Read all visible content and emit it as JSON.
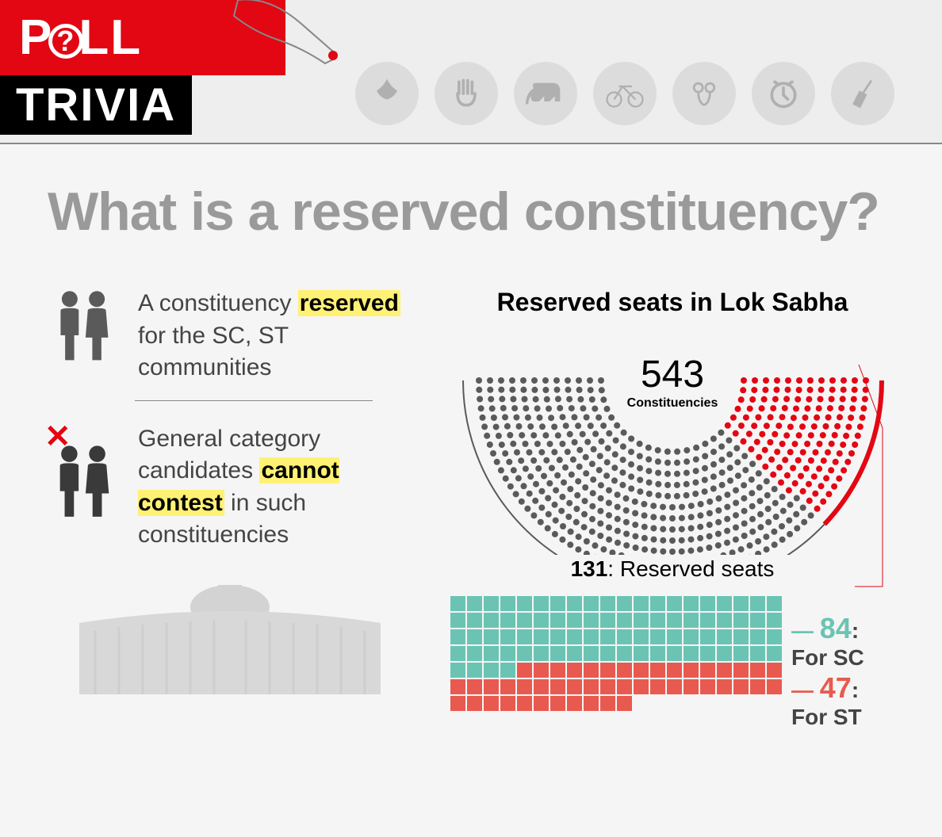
{
  "logo": {
    "line1_a": "P",
    "line1_b": "LL",
    "line2": "TRIVIA"
  },
  "party_icons": [
    "lotus-icon",
    "hand-icon",
    "elephant-icon",
    "bicycle-icon",
    "flowers-icon",
    "clock-icon",
    "broom-icon"
  ],
  "title": "What is a reserved constituency?",
  "def1": {
    "pre": "A constituency ",
    "hl": "reserved",
    "post": " for the SC, ST communities"
  },
  "def2": {
    "pre": "General category candidates ",
    "hl": "cannot contest",
    "post": " in such constituencies"
  },
  "lok_sabha": {
    "title": "Reserved seats in Lok Sabha",
    "total": "543",
    "total_label": "Constituencies",
    "reserved_num": "131",
    "reserved_label": ": Reserved seats"
  },
  "waffle": {
    "sc": {
      "count": 84,
      "label": ": For SC",
      "color": "#6bc4b3"
    },
    "st": {
      "count": 47,
      "label": ": For ST",
      "color": "#e85a4f"
    },
    "cols": 20
  },
  "arc": {
    "total_dots": 543,
    "reserved_dots": 131,
    "grey": "#5a5a5a",
    "red": "#e30613"
  }
}
